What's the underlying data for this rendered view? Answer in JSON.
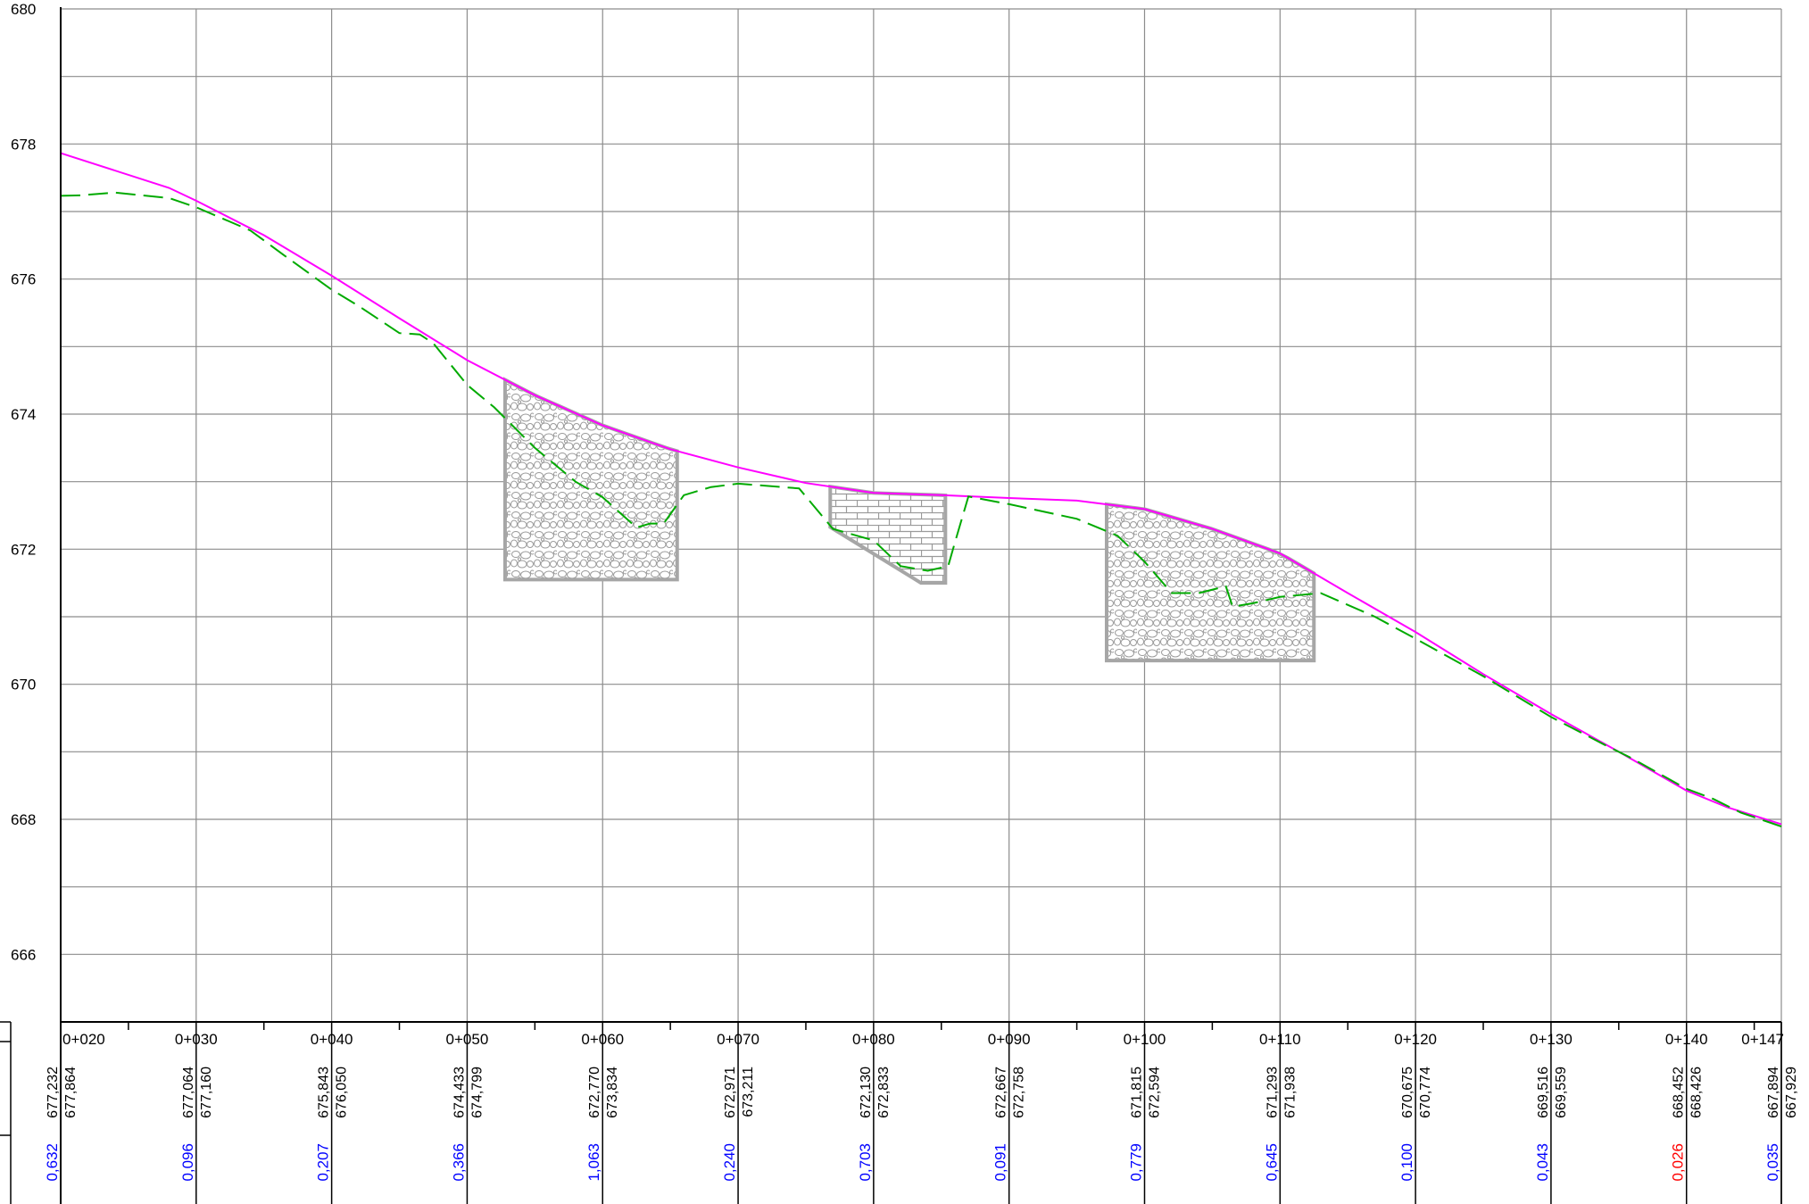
{
  "chart_data": {
    "type": "line",
    "title": "",
    "xlabel": "",
    "ylabel": "",
    "xlim": [
      20,
      147
    ],
    "ylim": [
      665,
      680
    ],
    "grid": true,
    "y_ticks": [
      666,
      668,
      670,
      672,
      674,
      676,
      678,
      680
    ],
    "x_minor_tick_step": 5,
    "stations": [
      {
        "d": 20,
        "label": "0+020",
        "v1": "677,232",
        "v2": "677,864",
        "diff": "0,632",
        "diff_color": "#0000ff"
      },
      {
        "d": 30,
        "label": "0+030",
        "v1": "677,064",
        "v2": "677,160",
        "diff": "0,096",
        "diff_color": "#0000ff"
      },
      {
        "d": 40,
        "label": "0+040",
        "v1": "675,843",
        "v2": "676,050",
        "diff": "0,207",
        "diff_color": "#0000ff"
      },
      {
        "d": 50,
        "label": "0+050",
        "v1": "674,433",
        "v2": "674,799",
        "diff": "0,366",
        "diff_color": "#0000ff"
      },
      {
        "d": 60,
        "label": "0+060",
        "v1": "672,770",
        "v2": "673,834",
        "diff": "1,063",
        "diff_color": "#0000ff"
      },
      {
        "d": 70,
        "label": "0+070",
        "v1": "672,971",
        "v2": "673,211",
        "diff": "0,240",
        "diff_color": "#0000ff"
      },
      {
        "d": 80,
        "label": "0+080",
        "v1": "672,130",
        "v2": "672,833",
        "diff": "0,703",
        "diff_color": "#0000ff"
      },
      {
        "d": 90,
        "label": "0+090",
        "v1": "672,667",
        "v2": "672,758",
        "diff": "0,091",
        "diff_color": "#0000ff"
      },
      {
        "d": 100,
        "label": "0+100",
        "v1": "671,815",
        "v2": "672,594",
        "diff": "0,779",
        "diff_color": "#0000ff"
      },
      {
        "d": 110,
        "label": "0+110",
        "v1": "671,293",
        "v2": "671,938",
        "diff": "0,645",
        "diff_color": "#0000ff"
      },
      {
        "d": 120,
        "label": "0+120",
        "v1": "670,675",
        "v2": "670,774",
        "diff": "0,100",
        "diff_color": "#0000ff"
      },
      {
        "d": 130,
        "label": "0+130",
        "v1": "669,516",
        "v2": "669,559",
        "diff": "0,043",
        "diff_color": "#0000ff"
      },
      {
        "d": 140,
        "label": "0+140",
        "v1": "668,452",
        "v2": "668,426",
        "diff": "0,026",
        "diff_color": "#ff0000"
      },
      {
        "d": 147,
        "label": "0+147",
        "v1": "667,894",
        "v2": "667,929",
        "diff": "0,035",
        "diff_color": "#0000ff"
      }
    ],
    "series": [
      {
        "style": "solid",
        "color": "#ff00ff",
        "points": [
          [
            20,
            677.864
          ],
          [
            28,
            677.35
          ],
          [
            30,
            677.16
          ],
          [
            35,
            676.65
          ],
          [
            40,
            676.05
          ],
          [
            45,
            675.42
          ],
          [
            50,
            674.799
          ],
          [
            55,
            674.28
          ],
          [
            60,
            673.834
          ],
          [
            65,
            673.48
          ],
          [
            70,
            673.211
          ],
          [
            75,
            672.98
          ],
          [
            80,
            672.833
          ],
          [
            85,
            672.8
          ],
          [
            90,
            672.758
          ],
          [
            95,
            672.72
          ],
          [
            100,
            672.594
          ],
          [
            105,
            672.3
          ],
          [
            110,
            671.938
          ],
          [
            115,
            671.35
          ],
          [
            120,
            670.774
          ],
          [
            125,
            670.15
          ],
          [
            130,
            669.559
          ],
          [
            135,
            669.0
          ],
          [
            140,
            668.426
          ],
          [
            143,
            668.18
          ],
          [
            147,
            667.929
          ]
        ]
      },
      {
        "style": "dashed",
        "color": "#00aa00",
        "points": [
          [
            20,
            677.232
          ],
          [
            21.5,
            677.24
          ],
          [
            24,
            677.28
          ],
          [
            28,
            677.2
          ],
          [
            30,
            677.064
          ],
          [
            34,
            676.72
          ],
          [
            36.5,
            676.35
          ],
          [
            40,
            675.843
          ],
          [
            42,
            675.6
          ],
          [
            45,
            675.2
          ],
          [
            46.5,
            675.18
          ],
          [
            47.5,
            675.05
          ],
          [
            50,
            674.433
          ],
          [
            52,
            674.1
          ],
          [
            55,
            673.5
          ],
          [
            58,
            673.0
          ],
          [
            60,
            672.77
          ],
          [
            62.5,
            672.32
          ],
          [
            63.5,
            672.38
          ],
          [
            64.5,
            672.38
          ],
          [
            66,
            672.8
          ],
          [
            68,
            672.92
          ],
          [
            70,
            672.971
          ],
          [
            74.5,
            672.9
          ],
          [
            77,
            672.3
          ],
          [
            80,
            672.13
          ],
          [
            82,
            671.75
          ],
          [
            84,
            671.68
          ],
          [
            85.5,
            671.75
          ],
          [
            86,
            672.1
          ],
          [
            87,
            672.78
          ],
          [
            90,
            672.667
          ],
          [
            95,
            672.45
          ],
          [
            98,
            672.2
          ],
          [
            100,
            671.815
          ],
          [
            102,
            671.35
          ],
          [
            104,
            671.35
          ],
          [
            106,
            671.45
          ],
          [
            106.5,
            671.15
          ],
          [
            108,
            671.2
          ],
          [
            110,
            671.293
          ],
          [
            113,
            671.35
          ],
          [
            117,
            671.0
          ],
          [
            120,
            670.675
          ],
          [
            125,
            670.12
          ],
          [
            130,
            669.516
          ],
          [
            134,
            669.1
          ],
          [
            136,
            668.9
          ],
          [
            140,
            668.452
          ],
          [
            142,
            668.3
          ],
          [
            144,
            668.1
          ],
          [
            147,
            667.894
          ]
        ]
      }
    ]
  }
}
